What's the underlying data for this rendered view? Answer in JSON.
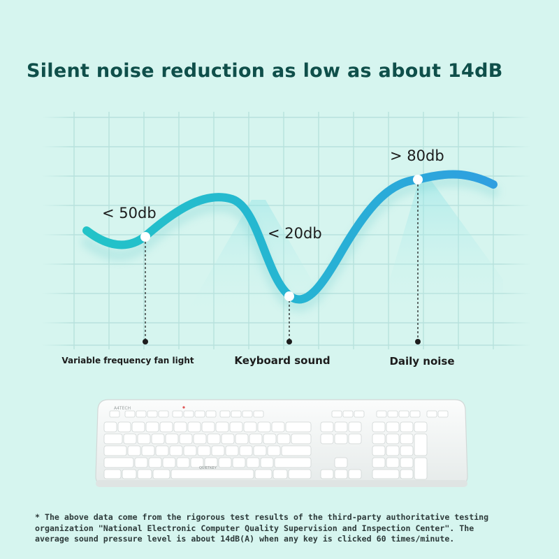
{
  "headline": "Silent noise reduction as low as about 14dB",
  "callouts": {
    "fan": "< 50db",
    "keyboard": "< 20db",
    "daily": "> 80db"
  },
  "categories": {
    "fan": "Variable frequency fan light",
    "keyboard": "Keyboard sound",
    "daily": "Daily noise"
  },
  "keyboard_brand": "QUIETKEY",
  "footnote": [
    "* The above data come from the rigorous test results of the third-party authoritative testing",
    "organization \"National Electronic Computer Quality Supervision and Inspection Center\". The",
    "average sound pressure level is about 14dB(A) when any key is clicked 60 times/minute."
  ],
  "colors": {
    "background": "#d6f5ef",
    "curve_start": "#22c3c8",
    "curve_end": "#2f9fe0",
    "headline": "#0f4f4a"
  }
}
